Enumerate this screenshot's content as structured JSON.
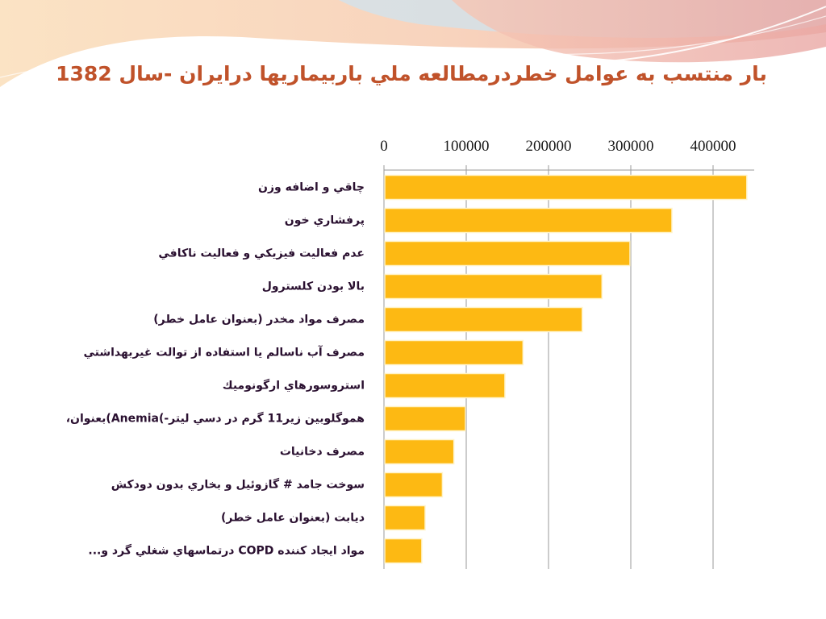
{
  "slide": {
    "title": "بار منتسب به عوامل خطردرمطالعه ملي باربيماريها درايران -سال 1382"
  },
  "colors": {
    "bar": "#fdb913",
    "title": "#c0522a",
    "label": "#2a1030",
    "banner_light": "#fbe3c4",
    "banner_pink": "#f1b9b0",
    "banner_blue": "#cfe3ef"
  },
  "chart_data": {
    "type": "bar",
    "orientation": "horizontal",
    "title": "",
    "xlabel": "",
    "ylabel": "",
    "x_axis_position": "top",
    "xlim": [
      0,
      450000
    ],
    "xticks": [
      0,
      100000,
      200000,
      300000,
      400000
    ],
    "xtick_labels": [
      "0",
      "100000",
      "200000",
      "300000",
      "400000"
    ],
    "grid": true,
    "categories": [
      "چاقي و اضافه وزن",
      "پرفشاري خون",
      "عدم فعاليت فيزيكي و فعاليت ناكافي",
      "بالا بودن كلسترول",
      "مصرف مواد مخدر (بعنوان عامل خطر)",
      "مصرف آب ناسالم يا استفاده از توالت غيربهداشتي",
      "استروسورهاي ارگونوميك",
      "هموگلوبين زير11 گرم در دسي ليتر-)Anemia)بعنوان،",
      "مصرف دخانيات",
      "سوخت جامد # گازوئيل و بخاري بدون دودكش",
      "ديابت (بعنوان عامل خطر)",
      "مواد ايجاد كننده  COPD درتماسهاي شغلي گرد و..."
    ],
    "values": [
      440000,
      349000,
      298000,
      264000,
      240000,
      168000,
      146000,
      98000,
      84000,
      70000,
      49000,
      45000
    ]
  }
}
